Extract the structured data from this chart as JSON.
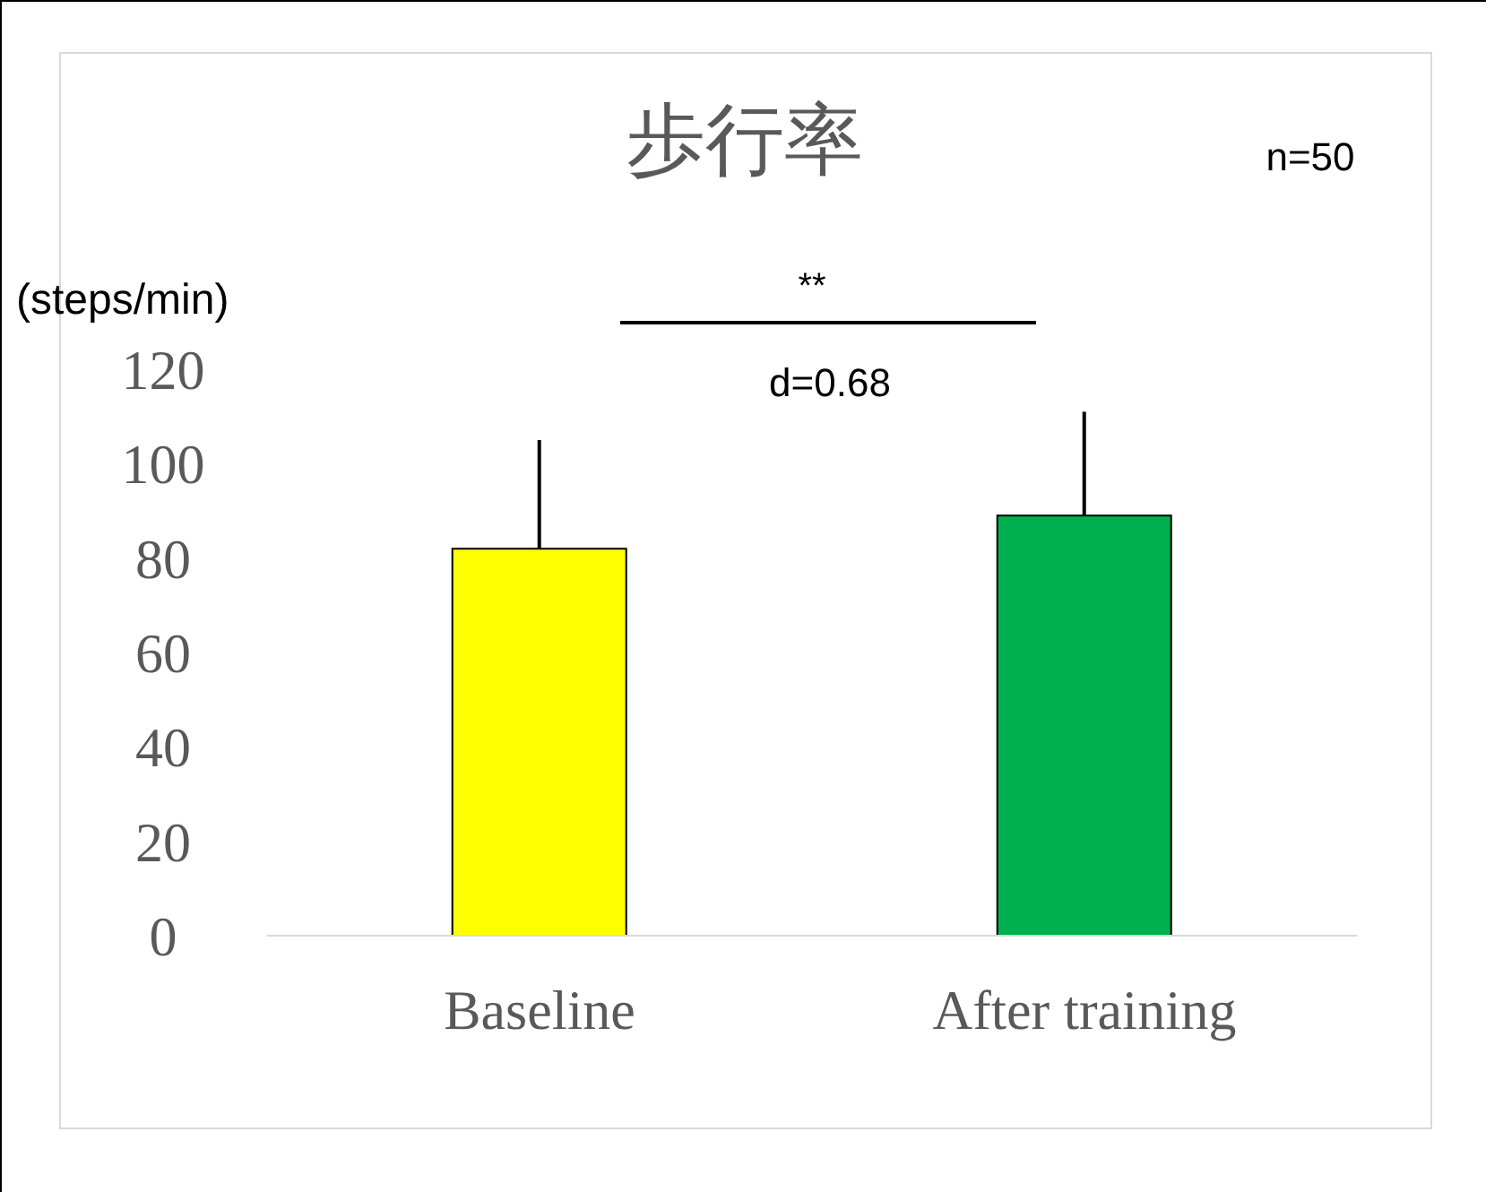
{
  "chart_data": {
    "type": "bar",
    "title": "歩行率",
    "ylabel": "(steps/min)",
    "categories": [
      "Baseline",
      "After training"
    ],
    "values": [
      82,
      89
    ],
    "colors": [
      "#ffff00",
      "#00b050"
    ],
    "errors": [
      [
        82,
        105
      ],
      [
        89,
        111
      ]
    ],
    "ylim": [
      0,
      120
    ],
    "yticks": [
      0,
      20,
      40,
      60,
      80,
      100,
      120
    ],
    "annotations": [
      "**",
      "d=0.68",
      "n=50"
    ]
  }
}
